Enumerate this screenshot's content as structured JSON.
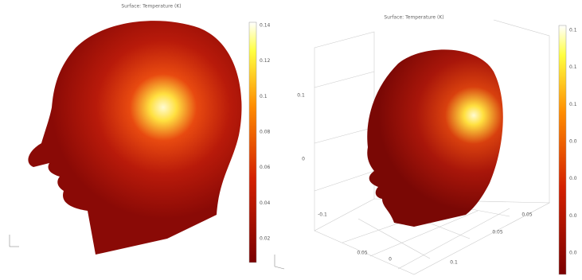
{
  "panels": [
    {
      "title": "Surface: Temperature (K)",
      "colorbar_ticks": [
        "0.14",
        "0.12",
        "0.1",
        "0.08",
        "0.06",
        "0.04",
        "0.02"
      ]
    },
    {
      "title": "Surface: Temperature (K)",
      "colorbar_ticks": [
        "0.1",
        "0.1",
        "0.1",
        "0.0",
        "0.0",
        "0.0",
        "0.0"
      ],
      "axis_labels": [
        "0.1",
        "0",
        "-0.1",
        "0.05",
        "0",
        "0.1",
        "0.05",
        "0.05"
      ]
    }
  ]
}
